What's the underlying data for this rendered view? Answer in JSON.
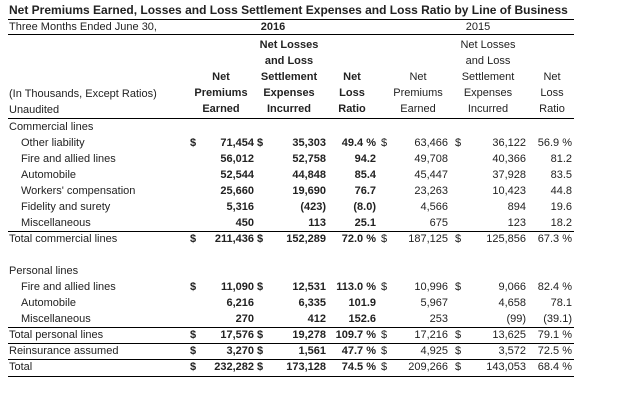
{
  "title": "Net Premiums Earned, Losses and Loss Settlement Expenses and Loss Ratio by Line of Business",
  "period": "Three Months Ended June 30,",
  "year_current": "2016",
  "year_prior": "2015",
  "stub_note": "(In Thousands, Except Ratios)",
  "stub_unaudited": "Unaudited",
  "col_npe": [
    "Net",
    "Premiums",
    "Earned"
  ],
  "col_nlle": [
    "Net Losses",
    "and Loss",
    "Settlement",
    "Expenses",
    "Incurred"
  ],
  "col_ratio": [
    "Net",
    "Loss",
    "Ratio"
  ],
  "rows": [
    {
      "label": "Commercial lines",
      "type": "section",
      "cells": [
        "",
        "",
        "",
        "",
        "",
        "",
        "",
        "",
        "",
        ""
      ]
    },
    {
      "label": "Other liability",
      "type": "item",
      "cells": [
        "$",
        "71,454",
        "$",
        "35,303",
        "49.4 %",
        "$",
        "63,466",
        "$",
        "36,122",
        "56.9 %"
      ]
    },
    {
      "label": "Fire and allied lines",
      "type": "item",
      "cells": [
        "",
        "56,012",
        "",
        "52,758",
        "94.2",
        "",
        "49,708",
        "",
        "40,366",
        "81.2"
      ]
    },
    {
      "label": "Automobile",
      "type": "item",
      "cells": [
        "",
        "52,544",
        "",
        "44,848",
        "85.4",
        "",
        "45,447",
        "",
        "37,928",
        "83.5"
      ]
    },
    {
      "label": "Workers' compensation",
      "type": "item",
      "cells": [
        "",
        "25,660",
        "",
        "19,690",
        "76.7",
        "",
        "23,263",
        "",
        "10,423",
        "44.8"
      ]
    },
    {
      "label": "Fidelity and surety",
      "type": "item",
      "cells": [
        "",
        "5,316",
        "",
        "(423)",
        "(8.0)",
        "",
        "4,566",
        "",
        "894",
        "19.6"
      ]
    },
    {
      "label": "Miscellaneous",
      "type": "item",
      "cells": [
        "",
        "450",
        "",
        "113",
        "25.1",
        "",
        "675",
        "",
        "123",
        "18.2"
      ]
    },
    {
      "label": "Total commercial lines",
      "type": "total",
      "cells": [
        "$",
        "211,436",
        "$",
        "152,289",
        "72.0 %",
        "$",
        "187,125",
        "$",
        "125,856",
        "67.3 %"
      ]
    },
    {
      "label": "",
      "type": "blank",
      "cells": [
        "",
        "",
        "",
        "",
        "",
        "",
        "",
        "",
        "",
        ""
      ]
    },
    {
      "label": "Personal lines",
      "type": "section",
      "cells": [
        "",
        "",
        "",
        "",
        "",
        "",
        "",
        "",
        "",
        ""
      ]
    },
    {
      "label": "Fire and allied lines",
      "type": "item",
      "cells": [
        "$",
        "11,090",
        "$",
        "12,531",
        "113.0 %",
        "$",
        "10,996",
        "$",
        "9,066",
        "82.4 %"
      ]
    },
    {
      "label": "Automobile",
      "type": "item",
      "cells": [
        "",
        "6,216",
        "",
        "6,335",
        "101.9",
        "",
        "5,967",
        "",
        "4,658",
        "78.1"
      ]
    },
    {
      "label": "Miscellaneous",
      "type": "item",
      "cells": [
        "",
        "270",
        "",
        "412",
        "152.6",
        "",
        "253",
        "",
        "(99)",
        "(39.1)"
      ]
    },
    {
      "label": "Total personal lines",
      "type": "total",
      "cells": [
        "$",
        "17,576",
        "$",
        "19,278",
        "109.7 %",
        "$",
        "17,216",
        "$",
        "13,625",
        "79.1 %"
      ]
    },
    {
      "label": "Reinsurance assumed",
      "type": "total",
      "cells": [
        "$",
        "3,270",
        "$",
        "1,561",
        "47.7 %",
        "$",
        "4,925",
        "$",
        "3,572",
        "72.5 %"
      ]
    },
    {
      "label": "Total",
      "type": "total",
      "cells": [
        "$",
        "232,282",
        "$",
        "173,128",
        "74.5 %",
        "$",
        "209,266",
        "$",
        "143,053",
        "68.4 %"
      ]
    }
  ]
}
